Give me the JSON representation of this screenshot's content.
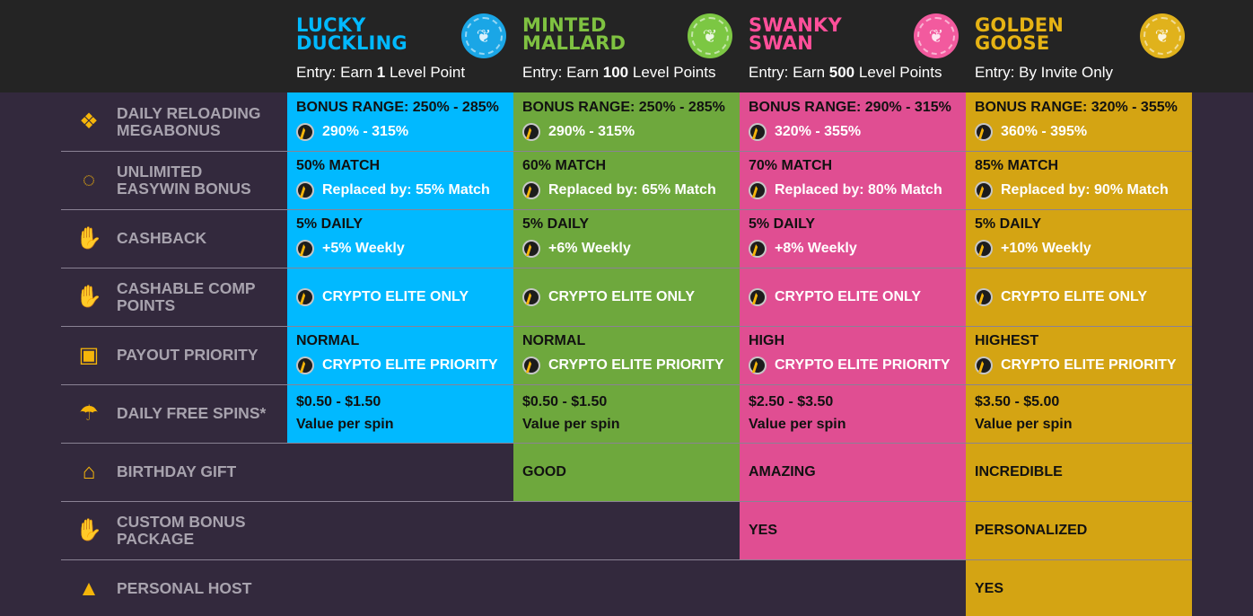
{
  "colors": {
    "background": "#33293d",
    "header": "#242424",
    "lucky": "#01b9ff",
    "minted": "#6ea83d",
    "swanky": "#e04e92",
    "golden": "#d4a413",
    "icon": "#f5b50a"
  },
  "tiers": [
    {
      "name": "LUCKY DUCKLING",
      "entry_prefix": "Entry: Earn ",
      "entry_bold": "1",
      "entry_suffix": " Level Point",
      "badge_text": "LUCKY DUCKLING",
      "color": "#01b9ff",
      "badge_color": "#1aa6e6"
    },
    {
      "name": "MINTED MALLARD",
      "entry_prefix": "Entry: Earn ",
      "entry_bold": "100",
      "entry_suffix": " Level Points",
      "badge_text": "MINTED MALLARD",
      "color": "#7fc241",
      "badge_color": "#7cc743"
    },
    {
      "name": "SWANKY SWAN",
      "entry_prefix": "Entry: Earn ",
      "entry_bold": "500",
      "entry_suffix": " Level Points",
      "badge_text": "SWANKY SWAN",
      "color": "#ff4f9a",
      "badge_color": "#f25a9e"
    },
    {
      "name": "GOLDEN GOOSE",
      "entry_prefix": "Entry: By Invite Only",
      "entry_bold": "",
      "entry_suffix": "",
      "badge_text": "GOLDEN GOOSE",
      "color": "#e6b314",
      "badge_color": "#e0b21c"
    }
  ],
  "features": [
    {
      "label": "DAILY RELOADING MEGABONUS",
      "icon": "gift-box-icon",
      "cells": [
        {
          "l1": "BONUS RANGE: 250% - 285%",
          "l2": "290% - 315%"
        },
        {
          "l1": "BONUS RANGE: 250% - 285%",
          "l2": "290% - 315%"
        },
        {
          "l1": "BONUS RANGE: 290% - 315%",
          "l2": "320% - 355%"
        },
        {
          "l1": "BONUS RANGE: 320% - 355%",
          "l2": "360% - 395%"
        }
      ]
    },
    {
      "label": "UNLIMITED EASYWIN BONUS",
      "icon": "circle-arrows-icon",
      "cells": [
        {
          "l1": "50% MATCH",
          "l2": "Replaced by: 55% Match"
        },
        {
          "l1": "60% MATCH",
          "l2": "Replaced by: 65% Match"
        },
        {
          "l1": "70% MATCH",
          "l2": "Replaced by: 80% Match"
        },
        {
          "l1": "85% MATCH",
          "l2": "Replaced by: 90% Match"
        }
      ]
    },
    {
      "label": "CASHBACK",
      "icon": "hand-coin-icon",
      "cells": [
        {
          "l1": "5% DAILY",
          "l2": "+5% Weekly"
        },
        {
          "l1": "5% DAILY",
          "l2": "+6% Weekly"
        },
        {
          "l1": "5% DAILY",
          "l2": "+8% Weekly"
        },
        {
          "l1": "5% DAILY",
          "l2": "+10% Weekly"
        }
      ]
    },
    {
      "label": "CASHABLE COMP POINTS",
      "icon": "hand-dollar-icon",
      "cells": [
        {
          "l1": "",
          "l2": "CRYPTO ELITE ONLY"
        },
        {
          "l1": "",
          "l2": "CRYPTO ELITE ONLY"
        },
        {
          "l1": "",
          "l2": "CRYPTO ELITE ONLY"
        },
        {
          "l1": "",
          "l2": "CRYPTO ELITE ONLY"
        }
      ]
    },
    {
      "label": "PAYOUT PRIORITY",
      "icon": "cash-withdraw-icon",
      "cells": [
        {
          "l1": "NORMAL",
          "l2": "CRYPTO ELITE PRIORITY"
        },
        {
          "l1": "NORMAL",
          "l2": "CRYPTO ELITE PRIORITY"
        },
        {
          "l1": "HIGH",
          "l2": "CRYPTO ELITE PRIORITY"
        },
        {
          "l1": "HIGHEST",
          "l2": "CRYPTO ELITE PRIORITY"
        }
      ]
    },
    {
      "label": "DAILY FREE SPINS*",
      "icon": "parachute-icon",
      "cells": [
        {
          "l1": "$0.50 - $1.50",
          "l1b": "Value per spin"
        },
        {
          "l1": "$0.50 - $1.50",
          "l1b": "Value per spin"
        },
        {
          "l1": "$2.50 - $3.50",
          "l1b": "Value per spin"
        },
        {
          "l1": "$3.50 - $5.00",
          "l1b": "Value per spin"
        }
      ]
    },
    {
      "label": "BIRTHDAY GIFT",
      "icon": "cake-icon",
      "cells": [
        null,
        {
          "plain": "GOOD"
        },
        {
          "plain": "AMAZING"
        },
        {
          "plain": "INCREDIBLE"
        }
      ]
    },
    {
      "label": "CUSTOM BONUS PACKAGE",
      "icon": "money-bag-hand-icon",
      "cells": [
        null,
        null,
        {
          "plain": "YES"
        },
        {
          "plain": "PERSONALIZED"
        }
      ]
    },
    {
      "label": "PERSONAL HOST",
      "icon": "person-icon",
      "cells": [
        null,
        null,
        null,
        {
          "plain": "YES"
        }
      ]
    }
  ]
}
